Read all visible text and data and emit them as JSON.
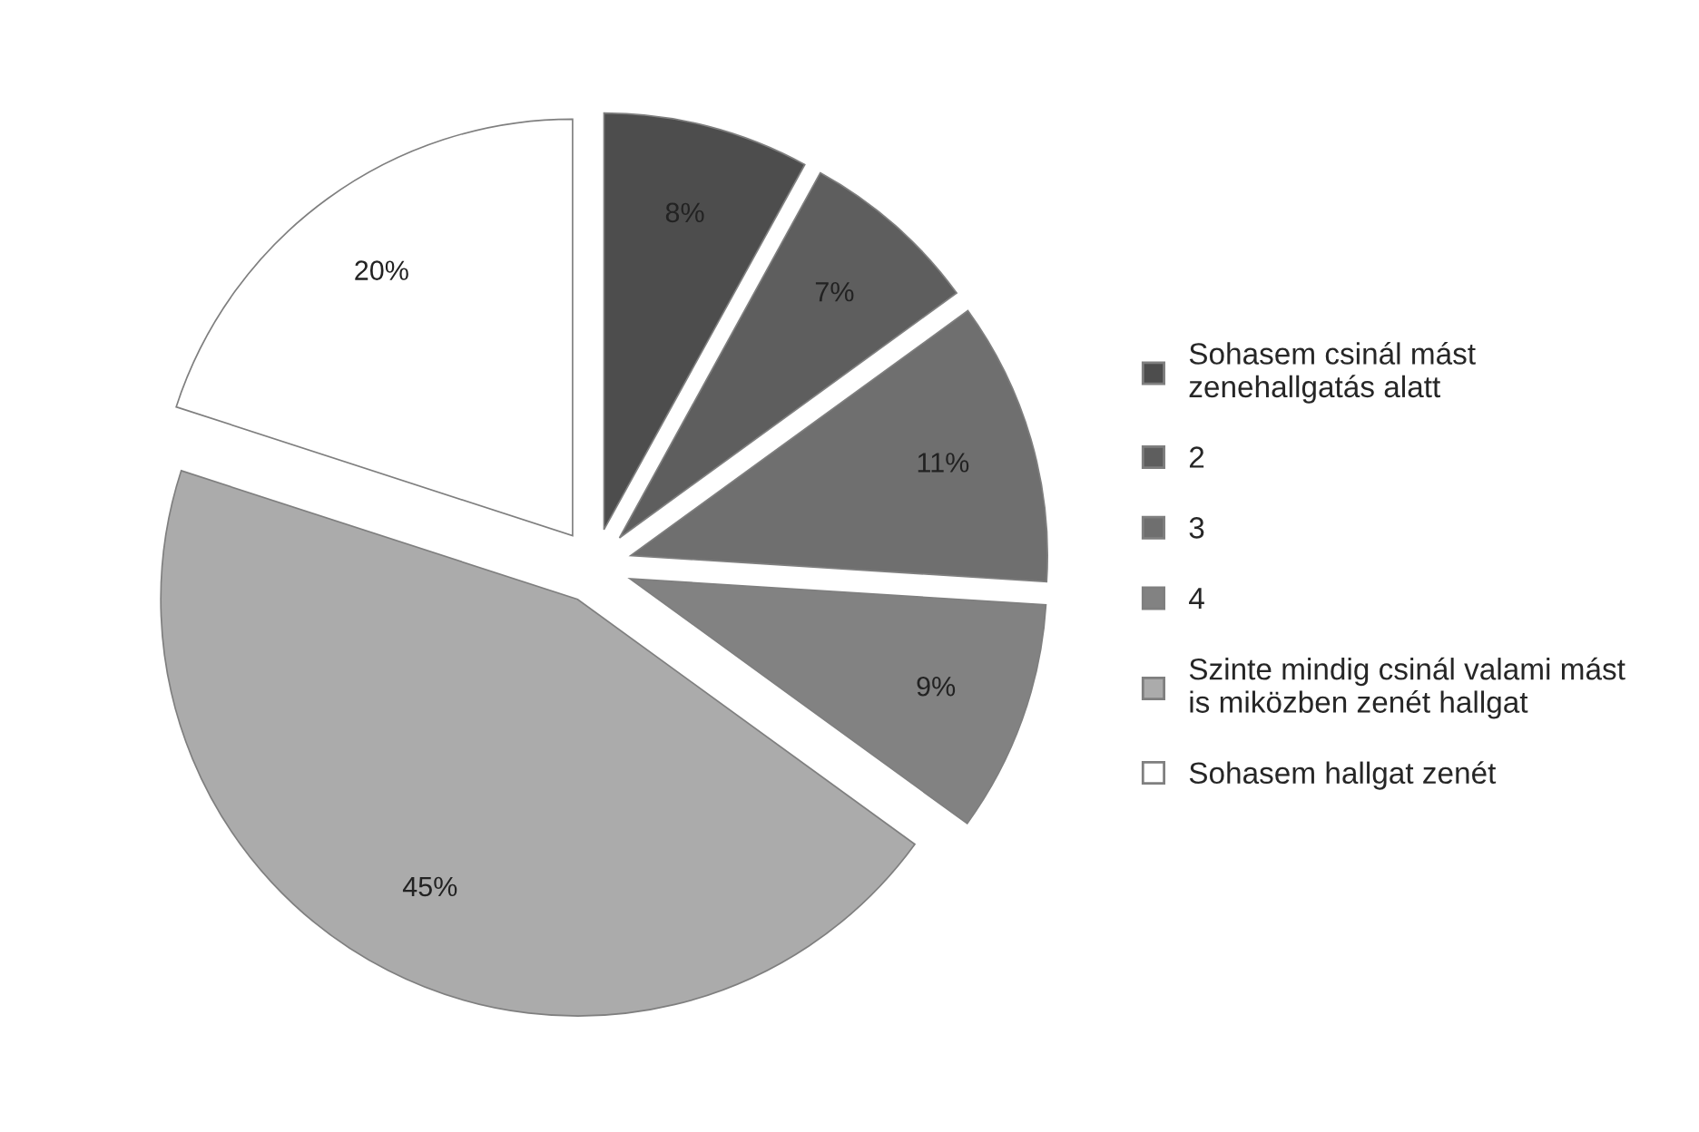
{
  "chart_data": {
    "type": "pie",
    "categories": [
      "Sohasem csinál mást\nzenehallgatás alatt",
      "2",
      "3",
      "4",
      "Szinte mindig csinál valami mást\nis miközben zenét hallgat",
      "Sohasem hallgat zenét"
    ],
    "values": [
      8,
      7,
      11,
      9,
      45,
      20
    ],
    "colors": [
      "#4d4d4d",
      "#5e5e5e",
      "#6f6f6f",
      "#828282",
      "#ababab",
      "#ffffff"
    ],
    "value_labels": [
      "8%",
      "7%",
      "11%",
      "9%",
      "45%",
      "20%"
    ],
    "legend": "right"
  }
}
